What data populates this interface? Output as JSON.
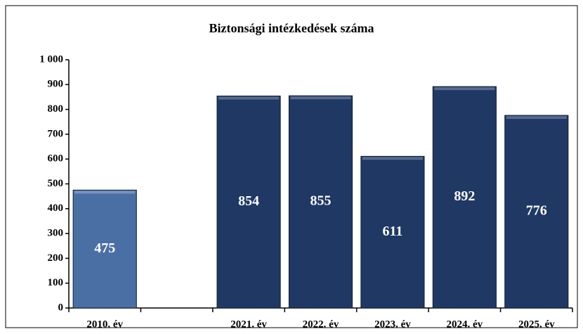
{
  "chart_data": {
    "type": "bar",
    "title": "Biztonsági intézkedések száma",
    "categories": [
      "2010. év",
      null,
      "2021. év",
      "2022. év",
      "2023. év",
      "2024. év",
      "2025. év"
    ],
    "values": [
      475,
      null,
      854,
      855,
      611,
      892,
      776
    ],
    "colors": [
      "#4a6fa5",
      "#1f3864",
      "#1f3864",
      "#1f3864",
      "#1f3864",
      "#1f3864",
      "#1f3864"
    ],
    "ylim": [
      0,
      1000
    ],
    "yticks": [
      0,
      100,
      200,
      300,
      400,
      500,
      600,
      700,
      800,
      900,
      {
        "value": 1000,
        "label": "1 000"
      }
    ],
    "grid": false
  }
}
